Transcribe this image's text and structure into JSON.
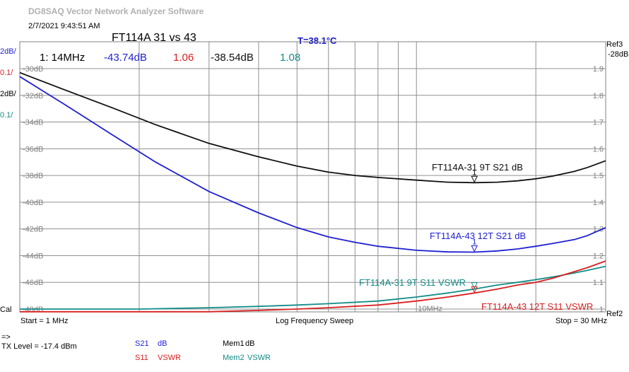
{
  "app": {
    "title": "DG8SAQ Vector Network Analyzer Software",
    "timestamp": "2/7/2021   9:43:51 AM"
  },
  "header": {
    "chart_title": "FT114A 31 vs 43",
    "temperature": "T=38.1°C"
  },
  "markers": {
    "label": "1: 14MHz",
    "values": [
      {
        "text": "-43.74dB",
        "color": "#1f1fd0"
      },
      {
        "text": "1.06",
        "color": "#d82020"
      },
      {
        "text": "-38.54dB",
        "color": "#101010"
      },
      {
        "text": "1.08",
        "color": "#138c88"
      }
    ]
  },
  "left_scale": [
    {
      "text": "2dB/",
      "color": "#1f1fd0"
    },
    {
      "text": "0.1/",
      "color": "#d82020"
    },
    {
      "text": "2dB/",
      "color": "#000000"
    },
    {
      "text": "0.1/",
      "color": "#138c88"
    }
  ],
  "left_cal": "Cal",
  "right_refs": {
    "top_ref": "Ref3",
    "top_ref_val": "-28dB",
    "bottom_ref": "Ref2"
  },
  "footer": {
    "start": "Start = 1 MHz",
    "sweep": "Log Frequency Sweep",
    "stop": "Stop = 30 MHz",
    "arrow": "=>",
    "tx_level": "TX Level = -17.4 dBm",
    "legend": [
      {
        "name": "S21",
        "unit": "dB",
        "color": "#1f1fd0"
      },
      {
        "name": "S11",
        "unit": "VSWR",
        "color": "#d82020"
      },
      {
        "name": "Mem1",
        "unit": "dB",
        "color": "#000000"
      },
      {
        "name": "Mem2",
        "unit": "VSWR",
        "color": "#138c88"
      }
    ]
  },
  "chart_data": {
    "type": "line",
    "x_scale": "log",
    "x_range_mhz": [
      1,
      30
    ],
    "x_tick_label": "10MHz",
    "x_tick_value": 10,
    "db_axis": {
      "ticks": [
        "-30dB",
        "-32dB",
        "-34dB",
        "-36dB",
        "-38dB",
        "-40dB",
        "-42dB",
        "-44dB",
        "-46dB",
        "-48dB"
      ],
      "range": [
        -48,
        -30
      ]
    },
    "vswr_axis": {
      "ticks": [
        "1.9",
        "1.8",
        "1.7",
        "1.6",
        "1.5",
        "1.4",
        "1.3",
        "1.2",
        "1.1",
        "1"
      ],
      "range": [
        1.0,
        1.9
      ]
    },
    "marker": {
      "freq_mhz": 14,
      "label": "1"
    },
    "series": [
      {
        "name": "FT114A-31 9T S21 dB",
        "axis": "db",
        "color": "#101010",
        "x": [
          1,
          1.3,
          1.7,
          2.2,
          3,
          4,
          5,
          6,
          7,
          8,
          10,
          12,
          14,
          16,
          18,
          20,
          22,
          25,
          27,
          30
        ],
        "y": [
          -30.3,
          -31.6,
          -32.9,
          -34.2,
          -35.6,
          -36.6,
          -37.3,
          -37.75,
          -38.0,
          -38.15,
          -38.35,
          -38.5,
          -38.54,
          -38.5,
          -38.4,
          -38.25,
          -38.05,
          -37.7,
          -37.4,
          -36.9
        ]
      },
      {
        "name": "FT114A-43 12T S21 dB",
        "axis": "db",
        "color": "#1f1fd0",
        "x": [
          1,
          1.3,
          1.7,
          2.2,
          3,
          4,
          5,
          6,
          7,
          8,
          10,
          12,
          14,
          16,
          18,
          20,
          22,
          25,
          27,
          30
        ],
        "y": [
          -30.6,
          -32.7,
          -34.9,
          -37.0,
          -39.2,
          -40.8,
          -41.9,
          -42.6,
          -43.0,
          -43.3,
          -43.6,
          -43.72,
          -43.74,
          -43.65,
          -43.5,
          -43.3,
          -43.1,
          -42.8,
          -42.5,
          -41.9
        ]
      },
      {
        "name": "FT114A-31 9T S11 VSWR",
        "axis": "vswr",
        "color": "#138c88",
        "x": [
          1,
          2,
          3,
          4,
          5,
          6,
          8,
          10,
          12,
          14,
          16,
          18,
          20,
          22,
          25,
          27,
          30
        ],
        "y": [
          1.0,
          1.0,
          1.005,
          1.01,
          1.015,
          1.02,
          1.03,
          1.045,
          1.06,
          1.075,
          1.09,
          1.1,
          1.11,
          1.12,
          1.135,
          1.145,
          1.16
        ]
      },
      {
        "name": "FT114A-43 12T S11 VSWR",
        "axis": "vswr",
        "color": "#d82020",
        "x": [
          1,
          2,
          3,
          4,
          5,
          6,
          8,
          10,
          12,
          14,
          16,
          18,
          20,
          22,
          25,
          27,
          30
        ],
        "y": [
          0.99,
          0.99,
          0.99,
          0.995,
          1.0,
          1.005,
          1.015,
          1.03,
          1.045,
          1.06,
          1.075,
          1.09,
          1.1,
          1.115,
          1.14,
          1.155,
          1.18
        ]
      }
    ],
    "trace_labels": [
      {
        "text": "FT114A-31 9T S21 dB",
        "color": "#101010"
      },
      {
        "text": "FT114A-43 12T S21 dB",
        "color": "#1f1fd0"
      },
      {
        "text": "FT114A-31 9T S11 VSWR",
        "color": "#138c88"
      },
      {
        "text": "FT114A-43 12T S11 VSWR",
        "color": "#d82020"
      }
    ]
  }
}
